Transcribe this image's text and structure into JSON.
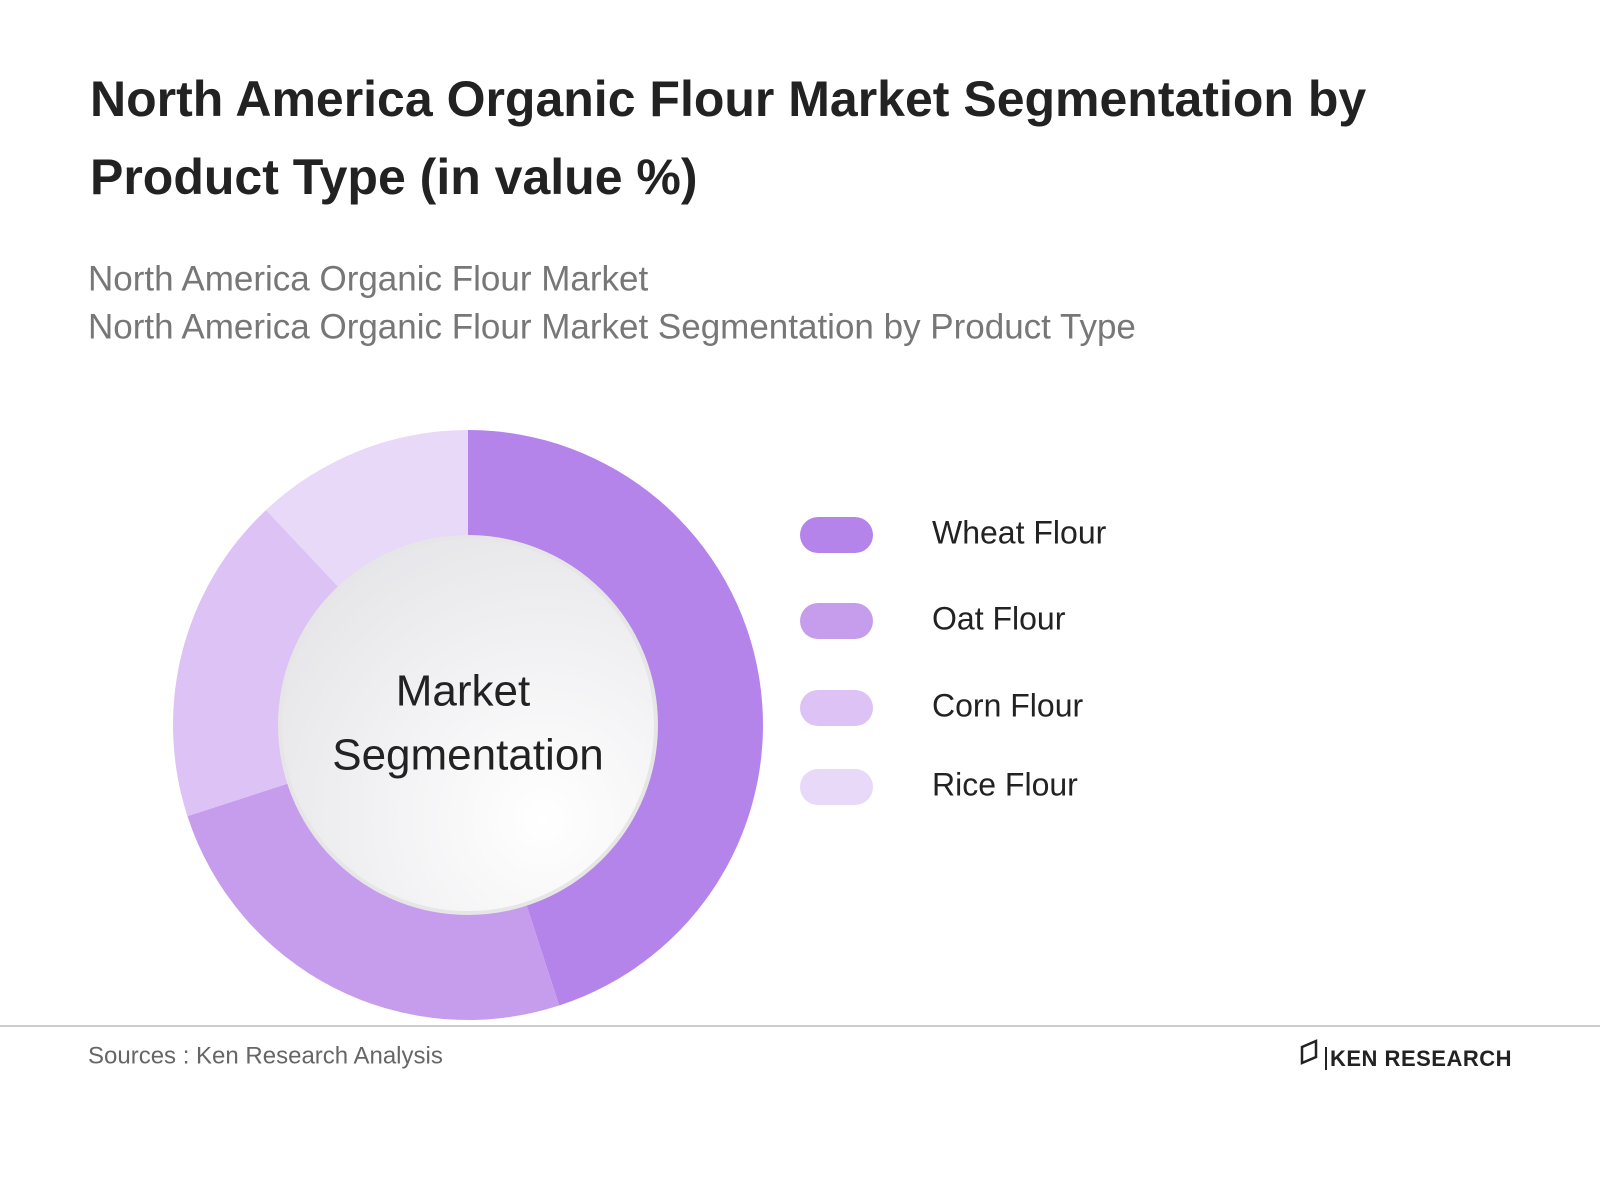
{
  "chart_data": {
    "type": "donut",
    "title_lines": [
      "North America Organic Flour Market Segmentation by",
      "Product Type (in value %)"
    ],
    "subtitle_lines": [
      "North America Organic Flour Market",
      "North America Organic Flour Market Segmentation by Product Type"
    ],
    "center_label_lines": [
      "Market",
      "Segmentation"
    ],
    "categories": [
      "Wheat Flour",
      "Oat Flour",
      "Corn Flour",
      "Rice Flour"
    ],
    "values": [
      45,
      25,
      18,
      12
    ],
    "colors": [
      "#b484ea",
      "#c69ded",
      "#dcc2f5",
      "#e8d9f8"
    ],
    "source": "Sources : Ken Research Analysis",
    "logo": "KEN RESEARCH"
  }
}
